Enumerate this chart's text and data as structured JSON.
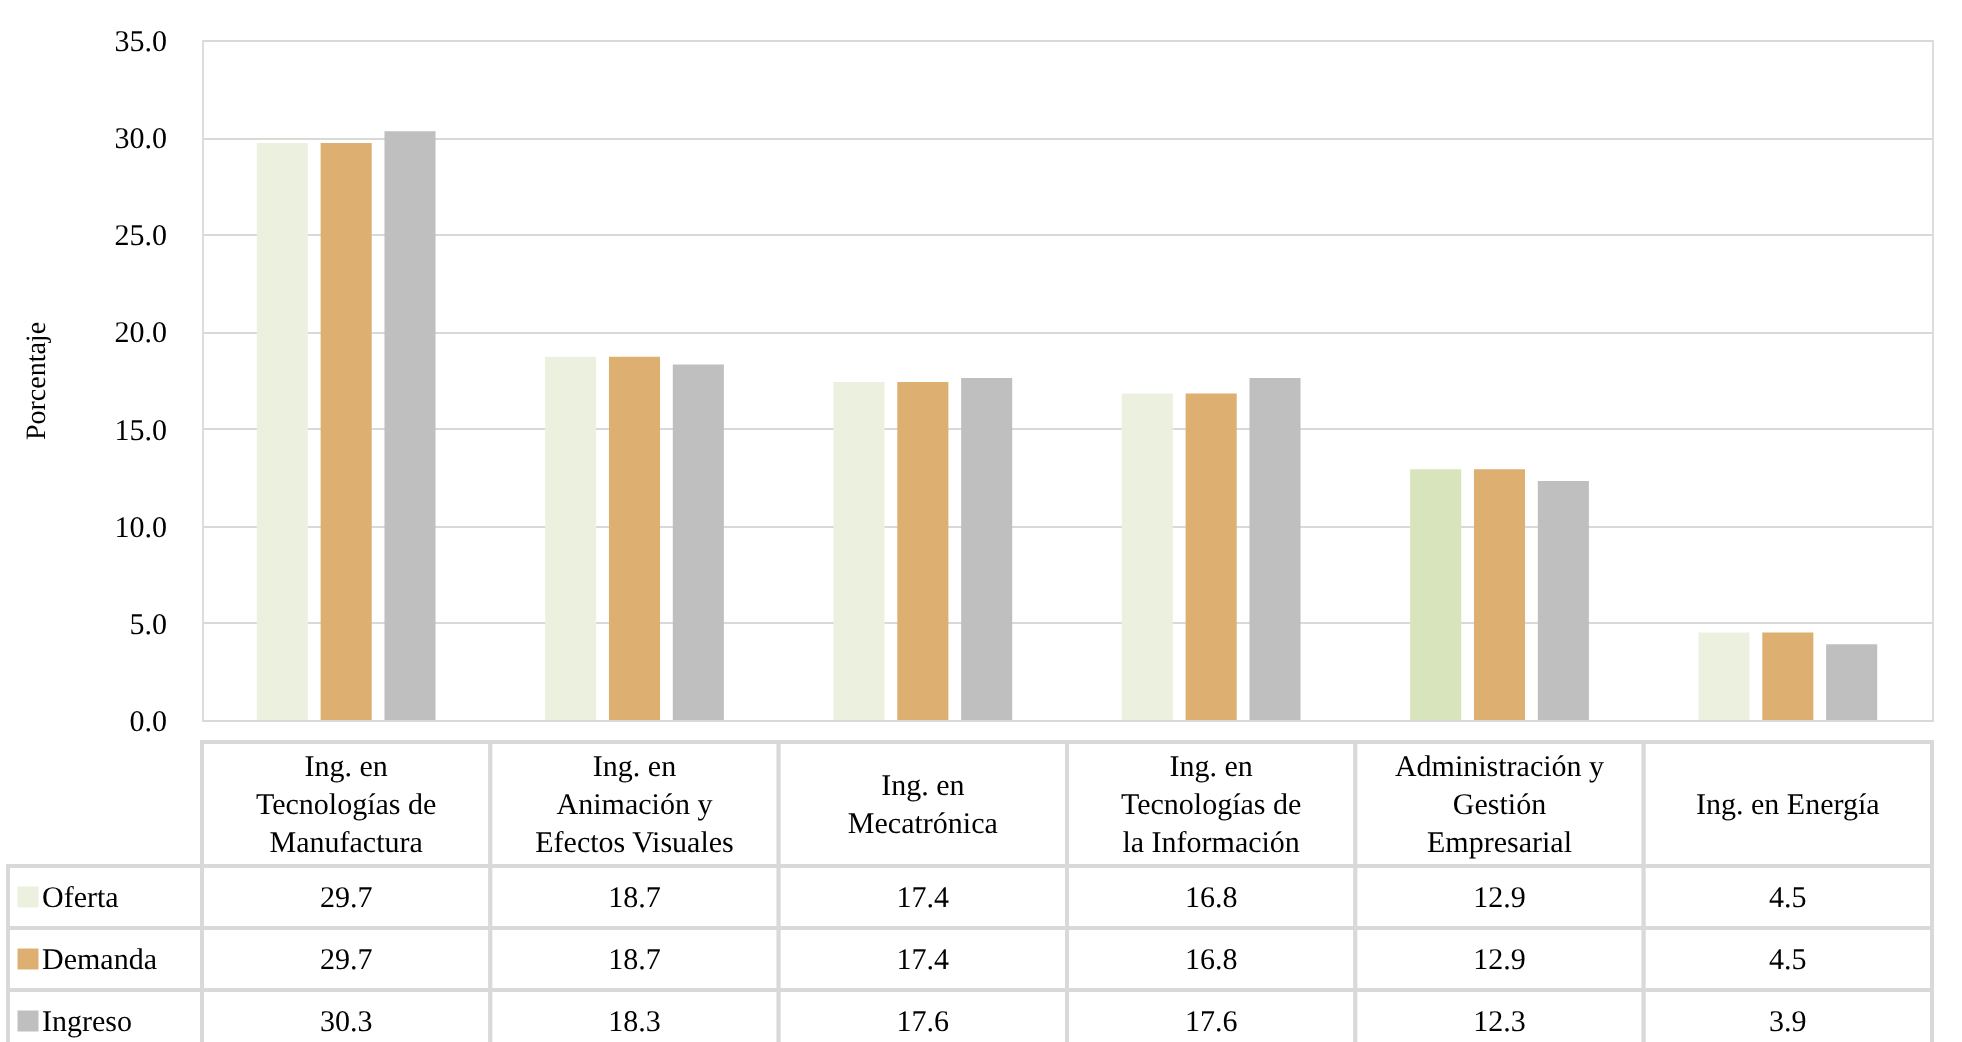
{
  "chart_data": {
    "type": "bar",
    "ylabel": "Porcentaje",
    "categories": [
      "Ing. en Tecnologías de Manufactura",
      "Ing. en Animación y Efectos Visuales",
      "Ing. en Mecatrónica",
      "Ing. en Tecnologías de la Información",
      "Administración y Gestión Empresarial",
      "Ing. en Energía"
    ],
    "series": [
      {
        "name": "Oferta",
        "color": "#ebf1de",
        "colors": [
          "#ebf1de",
          "#ebf1de",
          "#ebf1de",
          "#ebf1de",
          "#d8e4bc",
          "#ebf1de"
        ],
        "values": [
          29.7,
          18.7,
          17.4,
          16.8,
          12.9,
          4.5
        ]
      },
      {
        "name": "Demanda",
        "color": "#ddaf70",
        "values": [
          29.7,
          18.7,
          17.4,
          16.8,
          12.9,
          4.5
        ]
      },
      {
        "name": "Ingreso",
        "color": "#bfbfbf",
        "values": [
          30.3,
          18.3,
          17.6,
          17.6,
          12.3,
          3.9
        ]
      }
    ],
    "ylim": [
      0,
      35
    ],
    "yticks": [
      {
        "value": 0,
        "label": "0.0"
      },
      {
        "value": 5,
        "label": "5.0"
      },
      {
        "value": 10,
        "label": "10.0"
      },
      {
        "value": 15,
        "label": "15.0"
      },
      {
        "value": 20,
        "label": "20.0"
      },
      {
        "value": 25,
        "label": "25.0"
      },
      {
        "value": 30,
        "label": "30.0"
      },
      {
        "value": 35,
        "label": "35.0"
      }
    ],
    "grid": "y",
    "legend": "bottom left",
    "data_labels": true
  }
}
